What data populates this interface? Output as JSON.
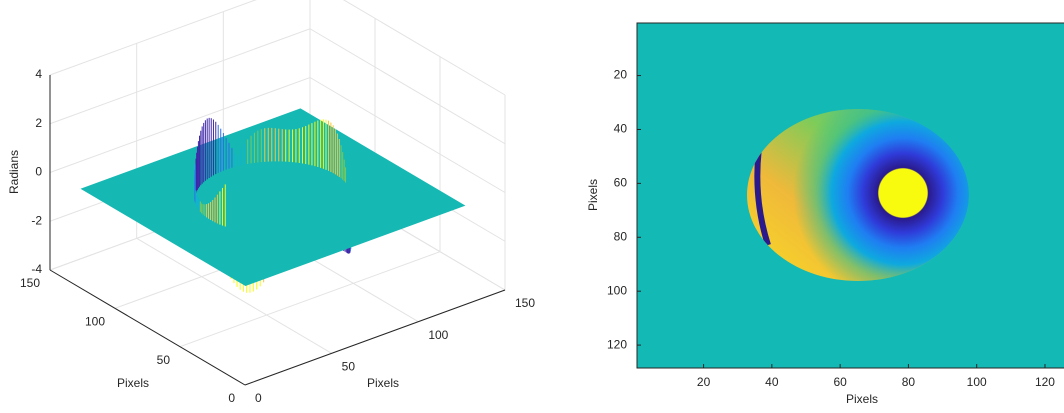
{
  "chart_data": [
    {
      "type": "surface",
      "xlabel": "Pixels",
      "ylabel": "Pixels",
      "zlabel": "Radians",
      "xlim": [
        0,
        150
      ],
      "xticks": [
        0,
        50,
        100,
        150
      ],
      "ylim": [
        0,
        150
      ],
      "yticks": [
        0,
        50,
        100,
        150
      ],
      "zlim": [
        -4,
        4
      ],
      "zticks": [
        -4,
        -2,
        0,
        2,
        4
      ],
      "grid": true
    },
    {
      "type": "image",
      "xlabel": "Pixels",
      "ylabel": "Pixels",
      "xlim": [
        0.5,
        128.5
      ],
      "xticks": [
        20,
        40,
        60,
        80,
        100,
        120
      ],
      "ylim": [
        0.5,
        128.5
      ],
      "yticks": [
        20,
        40,
        60,
        80,
        100,
        120
      ]
    }
  ]
}
